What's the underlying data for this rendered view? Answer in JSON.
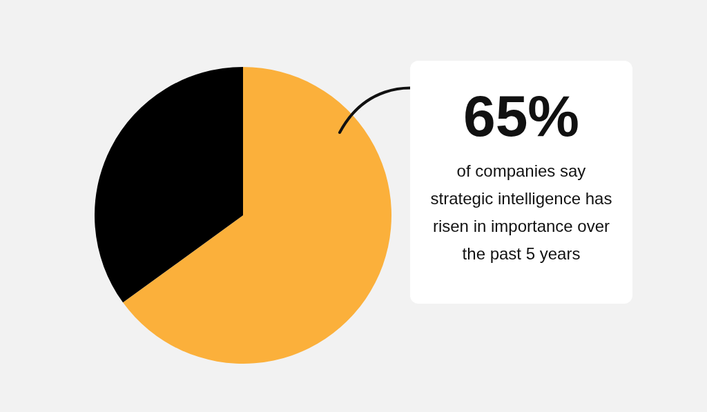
{
  "chart_data": {
    "type": "pie",
    "categories": [
      null,
      null
    ],
    "values": [
      65,
      35
    ],
    "colors": [
      "#fbb03b",
      "#000000"
    ],
    "legend": false,
    "annotations": [
      "65%",
      "of companies say strategic intelligence has risen in importance over the past 5 years"
    ]
  }
}
